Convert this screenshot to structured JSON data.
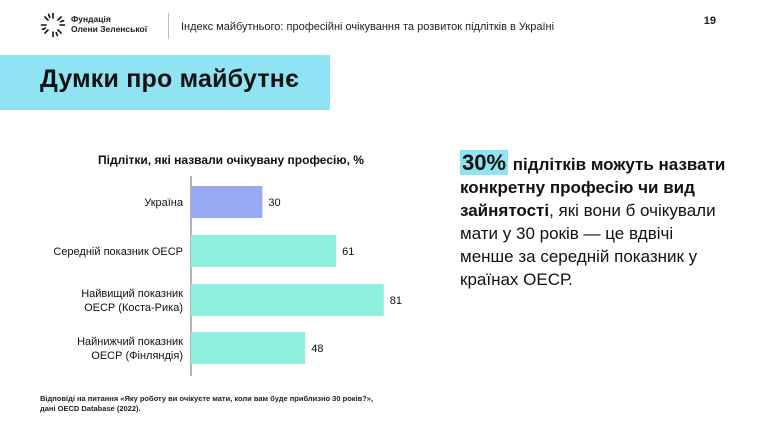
{
  "header": {
    "org_line1": "Фундація",
    "org_line2": "Олени Зеленської",
    "document_title": "Індекс майбутнього: професійні очікування та розвиток підлітків в Україні",
    "page_number": "19"
  },
  "page": {
    "title": "Думки про майбутнє"
  },
  "insight": {
    "percent": "30%",
    "bold_text": "підлітків можуть назвати конкретну професію чи вид зайнятості",
    "rest_text": ", які вони б очікували мати у 30 років — це вдвічі менше за середній показник у країнах ОЕСР."
  },
  "footnote": {
    "line1": "Відповіді на питання «Яку роботу ви очікуєте мати, коли вам буде приблизно 30 років?»,",
    "line2": "дані OECD Database (2022)."
  },
  "colors": {
    "accent": "#8fe3f2",
    "ukraine_bar": "#97a9f2",
    "oecd_bar": "#8ff0e0"
  },
  "chart_data": {
    "type": "bar",
    "orientation": "horizontal",
    "title": "Підлітки, які назвали очікувану професію, %",
    "categories": [
      [
        "Україна"
      ],
      [
        "Середній показник ОЕСР"
      ],
      [
        "Найвищий показник",
        "ОЕСР (Коста-Рика)"
      ],
      [
        "Найнижчий показник",
        "ОЕСР (Фінляндія)"
      ]
    ],
    "values": [
      30,
      61,
      81,
      48
    ],
    "data_labels": [
      "30",
      "61",
      "81",
      "48"
    ],
    "bar_colors": [
      "#97a9f2",
      "#8ff0e0",
      "#8ff0e0",
      "#8ff0e0"
    ],
    "xlim": [
      0,
      100
    ],
    "grid": false,
    "legend": "none"
  }
}
